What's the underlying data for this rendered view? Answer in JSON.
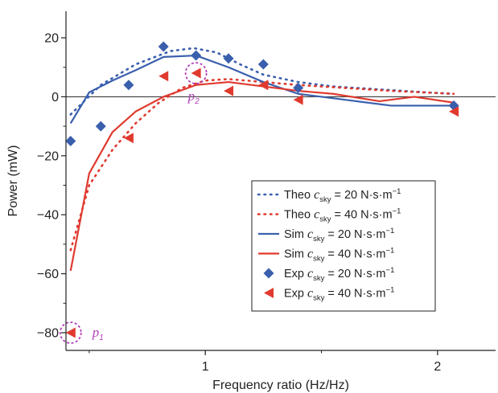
{
  "chart_data": {
    "type": "line",
    "xlabel": "Frequency ratio (Hz/Hz)",
    "ylabel": "Power (mW)",
    "xlim": [
      0.4,
      2.25
    ],
    "ylim": [
      -86,
      29
    ],
    "x_ticks": [
      1,
      2
    ],
    "y_ticks": [
      20,
      0,
      -20,
      -40,
      -60,
      -80
    ],
    "x_tick_labels": [
      "1",
      "2"
    ],
    "y_tick_labels": [
      "20",
      "0",
      "−20",
      "−40",
      "−60",
      "−80"
    ],
    "grid": false,
    "legend_position": "lower-right",
    "zero_line": 0,
    "series": [
      {
        "key": "theo20",
        "name": "Theo",
        "style": "dotted",
        "color": "#3a5fad",
        "c_label": "c",
        "c_sub": "sky",
        "c_value": "= 20 N·s·m",
        "c_exp": "−1",
        "x": [
          0.42,
          0.55,
          0.7,
          0.85,
          0.95,
          1.05,
          1.15,
          1.25,
          1.4,
          1.55,
          1.75,
          1.95,
          2.07
        ],
        "y": [
          -6,
          4,
          11,
          15.5,
          16.5,
          15,
          11,
          7.5,
          5,
          3.5,
          2.5,
          1.5,
          1
        ]
      },
      {
        "key": "theo40",
        "name": "Theo",
        "style": "dotted",
        "color": "#e03a2f",
        "c_label": "c",
        "c_sub": "sky",
        "c_value": "= 40 N·s·m",
        "c_exp": "−1",
        "x": [
          0.42,
          0.5,
          0.6,
          0.7,
          0.8,
          0.9,
          1.0,
          1.1,
          1.25,
          1.4,
          1.6,
          1.8,
          2.07
        ],
        "y": [
          -52,
          -30,
          -18,
          -9,
          -2,
          3,
          5.5,
          6,
          5,
          4,
          3,
          2,
          1
        ]
      },
      {
        "key": "sim20",
        "name": "Sim",
        "style": "solid",
        "color": "#3a5fad",
        "c_label": "c",
        "c_sub": "sky",
        "c_value": "= 20 N·s·m",
        "c_exp": "−1",
        "x": [
          0.42,
          0.5,
          0.6,
          0.7,
          0.82,
          0.96,
          1.1,
          1.25,
          1.4,
          1.6,
          1.8,
          1.95,
          2.07
        ],
        "y": [
          -9,
          1.5,
          5.5,
          9,
          13.5,
          14,
          10,
          5,
          1,
          -1,
          -3,
          -3,
          -3
        ]
      },
      {
        "key": "sim40",
        "name": "Sim",
        "style": "solid",
        "color": "#e03a2f",
        "c_label": "c",
        "c_sub": "sky",
        "c_value": "= 40 N·s·m",
        "c_exp": "−1",
        "x": [
          0.42,
          0.5,
          0.6,
          0.7,
          0.82,
          0.96,
          1.1,
          1.25,
          1.4,
          1.55,
          1.75,
          1.9,
          2.07
        ],
        "y": [
          -59,
          -26,
          -12,
          -5,
          0,
          4,
          5,
          3.5,
          2,
          1,
          -1.5,
          0,
          -2
        ]
      },
      {
        "key": "exp20",
        "name": "Exp",
        "style": "marker-diamond",
        "color": "#3a5fad",
        "c_label": "c",
        "c_sub": "sky",
        "c_value": "= 20 N·s·m",
        "c_exp": "−1",
        "x": [
          0.42,
          0.55,
          0.67,
          0.82,
          0.96,
          1.1,
          1.25,
          1.4,
          2.07
        ],
        "y": [
          -15,
          -10,
          4,
          17,
          14,
          13,
          11,
          3,
          -3
        ]
      },
      {
        "key": "exp40",
        "name": "Exp",
        "style": "marker-triangle",
        "color": "#e03a2f",
        "c_label": "c",
        "c_sub": "sky",
        "c_value": "= 40 N·s·m",
        "c_exp": "−1",
        "x": [
          0.42,
          0.67,
          0.82,
          0.96,
          1.1,
          1.25,
          1.4,
          2.07
        ],
        "y": [
          -80,
          -14,
          7,
          8,
          2,
          4,
          -1,
          -5
        ]
      }
    ],
    "annotations": [
      {
        "key": "p1",
        "symbol": "p",
        "sub": "1",
        "x": 0.42,
        "y": -80,
        "color": "#b040b8"
      },
      {
        "key": "p2",
        "symbol": "p",
        "sub": "2",
        "x": 0.96,
        "y": 8,
        "color": "#b040b8"
      }
    ]
  }
}
